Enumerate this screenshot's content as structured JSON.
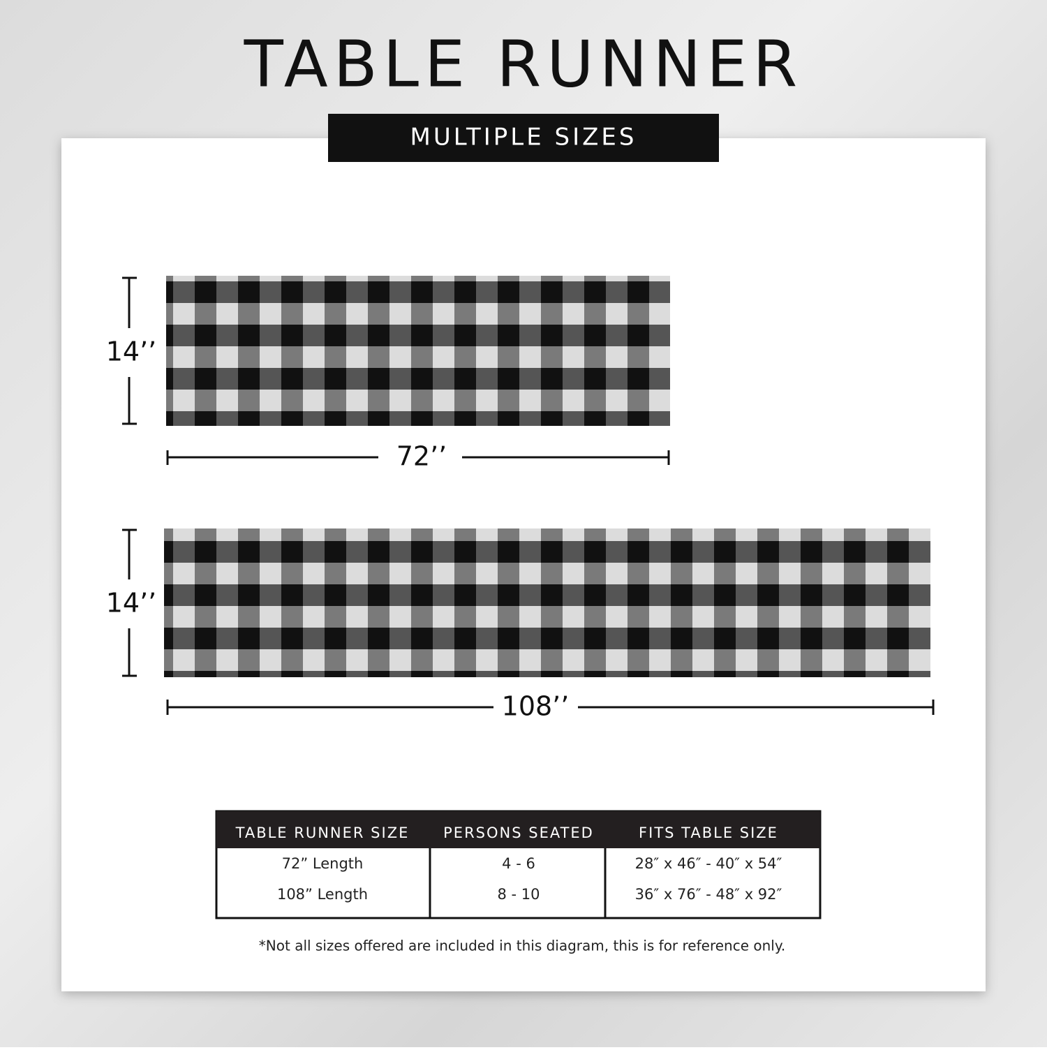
{
  "header": {
    "title": "TABLE RUNNER",
    "subtitle": "MULTIPLE SIZES"
  },
  "runners": [
    {
      "height_label": "14’’",
      "length_label": "72’’"
    },
    {
      "height_label": "14’’",
      "length_label": "108’’"
    }
  ],
  "table": {
    "headers": [
      "TABLE RUNNER SIZE",
      "PERSONS SEATED",
      "FITS TABLE SIZE"
    ],
    "rows": [
      [
        "72” Length",
        "4 - 6",
        "28″ x 46″ - 40″ x 54″"
      ],
      [
        "108” Length",
        "8 - 10",
        "36″ x 76″ - 48″ x 92″"
      ]
    ]
  },
  "footnote": "*Not all sizes offered are included in this diagram, this is for reference only."
}
